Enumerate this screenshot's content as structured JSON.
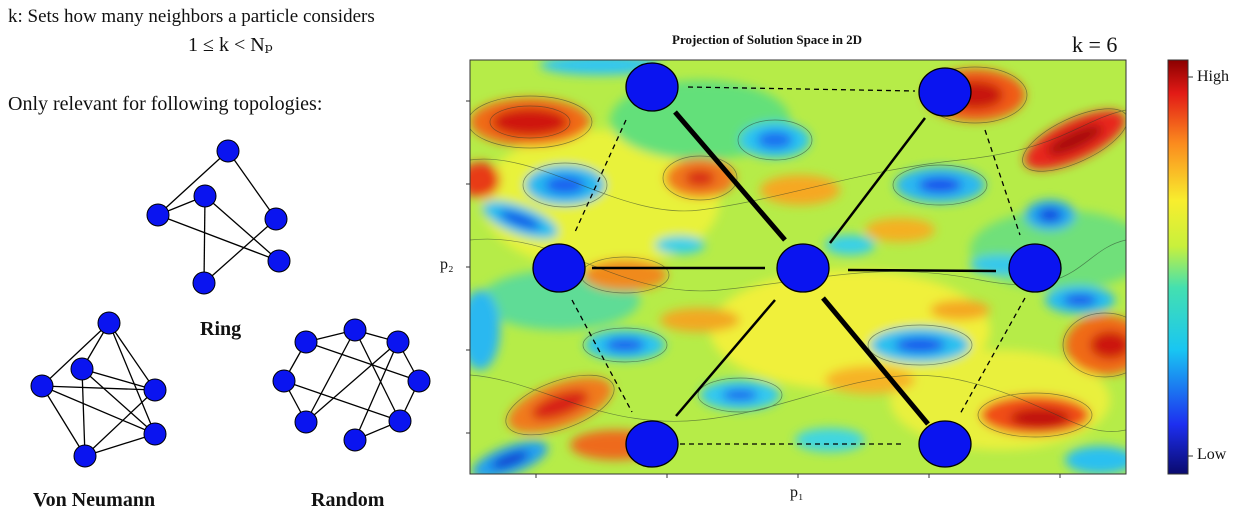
{
  "intro": {
    "k_definition": "k: Sets how many neighbors a particle considers",
    "inequality": "1 ≤ k < Nₚ",
    "relevance_note": "Only relevant for following topologies:"
  },
  "topologies": {
    "ring_label": "Ring",
    "von_neumann_label": "Von Neumann",
    "random_label": "Random"
  },
  "plot": {
    "title": "Projection of Solution Space in 2D",
    "k_value": "k = 6",
    "x_axis_label": "p₁",
    "y_axis_label": "p₂",
    "colorbar_high": "High",
    "colorbar_low": "Low"
  },
  "colors": {
    "particle_fill": "#0a14f0",
    "particle_stroke": "#000000",
    "colormap_high": "#8b0000",
    "colormap_low": "#0a0a6e"
  }
}
